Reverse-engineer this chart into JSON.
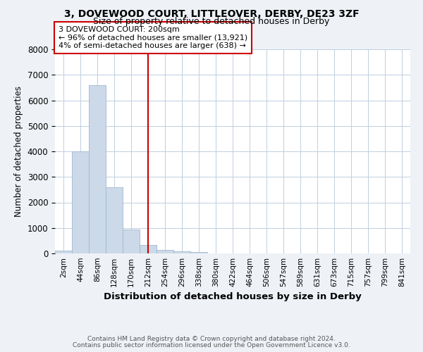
{
  "title1": "3, DOVEWOOD COURT, LITTLEOVER, DERBY, DE23 3ZF",
  "title2": "Size of property relative to detached houses in Derby",
  "xlabel": "Distribution of detached houses by size in Derby",
  "ylabel": "Number of detached properties",
  "bar_labels": [
    "2sqm",
    "44sqm",
    "86sqm",
    "128sqm",
    "170sqm",
    "212sqm",
    "254sqm",
    "296sqm",
    "338sqm",
    "380sqm",
    "422sqm",
    "464sqm",
    "506sqm",
    "547sqm",
    "589sqm",
    "631sqm",
    "673sqm",
    "715sqm",
    "757sqm",
    "799sqm",
    "841sqm"
  ],
  "bar_values": [
    100,
    4000,
    6600,
    2600,
    950,
    320,
    130,
    70,
    60,
    0,
    0,
    0,
    0,
    0,
    0,
    0,
    0,
    0,
    0,
    0,
    0
  ],
  "bar_color": "#ccd9e8",
  "bar_edge_color": "#a0b8d0",
  "vline_x_index": 5,
  "vline_color": "#cc0000",
  "annotation_text": "3 DOVEWOOD COURT: 200sqm\n← 96% of detached houses are smaller (13,921)\n4% of semi-detached houses are larger (638) →",
  "annotation_box_color": "#cc0000",
  "ylim": [
    0,
    8000
  ],
  "yticks": [
    0,
    1000,
    2000,
    3000,
    4000,
    5000,
    6000,
    7000,
    8000
  ],
  "footnote1": "Contains HM Land Registry data © Crown copyright and database right 2024.",
  "footnote2": "Contains public sector information licensed under the Open Government Licence v3.0.",
  "bg_color": "#eef2f7",
  "plot_bg_color": "#ffffff",
  "grid_color": "#c0cfe0"
}
